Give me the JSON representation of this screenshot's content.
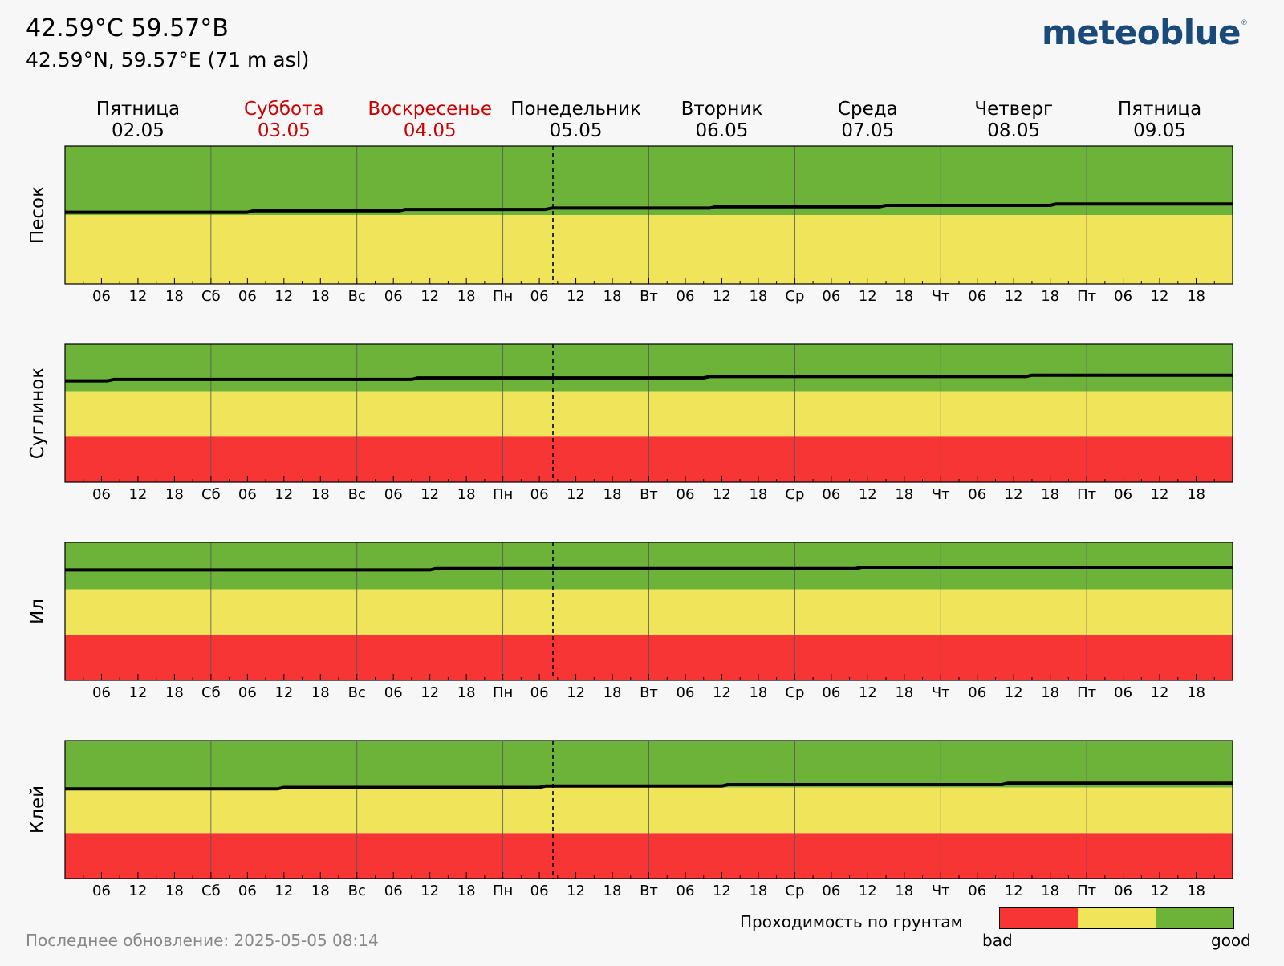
{
  "header": {
    "title": "42.59°C 59.57°B",
    "subtitle": "42.59°N, 59.57°E (71 m asl)",
    "logo": "meteoblue",
    "logo_mark": "®"
  },
  "footer": {
    "last_update": "Последнее обновление: 2025-05-05 08:14"
  },
  "legend": {
    "title": "Проходимость по грунтам",
    "low_label": "bad",
    "high_label": "good",
    "colors": [
      "#f73535",
      "#f0e45a",
      "#6db33a"
    ]
  },
  "colors": {
    "bad": "#f73535",
    "medium": "#f0e45a",
    "good": "#6db33a",
    "weekend_header": "#cc0000",
    "line": "#000000"
  },
  "chart_data": {
    "type": "line",
    "x_range": [
      "2025-05-02 00:00",
      "2025-05-10 00:00"
    ],
    "now_marker": "2025-05-05 08:14",
    "y_range": [
      0,
      1
    ],
    "days": [
      {
        "name": "Пятница",
        "date": "02.05",
        "weekend": false
      },
      {
        "name": "Суббота",
        "date": "03.05",
        "weekend": true
      },
      {
        "name": "Воскресенье",
        "date": "04.05",
        "weekend": true
      },
      {
        "name": "Понедельник",
        "date": "05.05",
        "weekend": false
      },
      {
        "name": "Вторник",
        "date": "06.05",
        "weekend": false
      },
      {
        "name": "Среда",
        "date": "07.05",
        "weekend": false
      },
      {
        "name": "Четверг",
        "date": "08.05",
        "weekend": false
      },
      {
        "name": "Пятница",
        "date": "09.05",
        "weekend": false
      }
    ],
    "tick_labels": [
      "",
      "06",
      "12",
      "18",
      "Сб",
      "06",
      "12",
      "18",
      "Вс",
      "06",
      "12",
      "18",
      "Пн",
      "06",
      "12",
      "18",
      "Вт",
      "06",
      "12",
      "18",
      "Ср",
      "06",
      "12",
      "18",
      "Чт",
      "06",
      "12",
      "18",
      "Пт",
      "06",
      "12",
      "18"
    ],
    "panels": [
      {
        "ylabel": "Песок",
        "bands": [
          {
            "level": "medium",
            "from": 0,
            "to": 0.5
          },
          {
            "level": "good",
            "from": 0.5,
            "to": 1
          }
        ],
        "x_hours": [
          0,
          30,
          31,
          55,
          56,
          79,
          80,
          106,
          107,
          134,
          135,
          162,
          163,
          192
        ],
        "values": [
          0.52,
          0.52,
          0.53,
          0.53,
          0.54,
          0.54,
          0.55,
          0.55,
          0.56,
          0.56,
          0.57,
          0.57,
          0.58,
          0.58
        ]
      },
      {
        "ylabel": "Суглинок",
        "bands": [
          {
            "level": "bad",
            "from": 0,
            "to": 0.33
          },
          {
            "level": "medium",
            "from": 0.33,
            "to": 0.66
          },
          {
            "level": "good",
            "from": 0.66,
            "to": 1
          }
        ],
        "x_hours": [
          0,
          7,
          8,
          57,
          58,
          105,
          106,
          158,
          159,
          192
        ],
        "values": [
          0.735,
          0.735,
          0.745,
          0.745,
          0.755,
          0.755,
          0.765,
          0.765,
          0.775,
          0.775
        ]
      },
      {
        "ylabel": "Ил",
        "bands": [
          {
            "level": "bad",
            "from": 0,
            "to": 0.33
          },
          {
            "level": "medium",
            "from": 0.33,
            "to": 0.66
          },
          {
            "level": "good",
            "from": 0.66,
            "to": 1
          }
        ],
        "x_hours": [
          0,
          60,
          61,
          130,
          131,
          192
        ],
        "values": [
          0.8,
          0.8,
          0.81,
          0.81,
          0.82,
          0.82
        ]
      },
      {
        "ylabel": "Клей",
        "bands": [
          {
            "level": "bad",
            "from": 0,
            "to": 0.33
          },
          {
            "level": "medium",
            "from": 0.33,
            "to": 0.66
          },
          {
            "level": "good",
            "from": 0.66,
            "to": 1
          }
        ],
        "x_hours": [
          0,
          35,
          36,
          78,
          79,
          108,
          109,
          154,
          155,
          192
        ],
        "values": [
          0.65,
          0.65,
          0.66,
          0.66,
          0.67,
          0.67,
          0.68,
          0.68,
          0.69,
          0.69
        ]
      }
    ]
  }
}
